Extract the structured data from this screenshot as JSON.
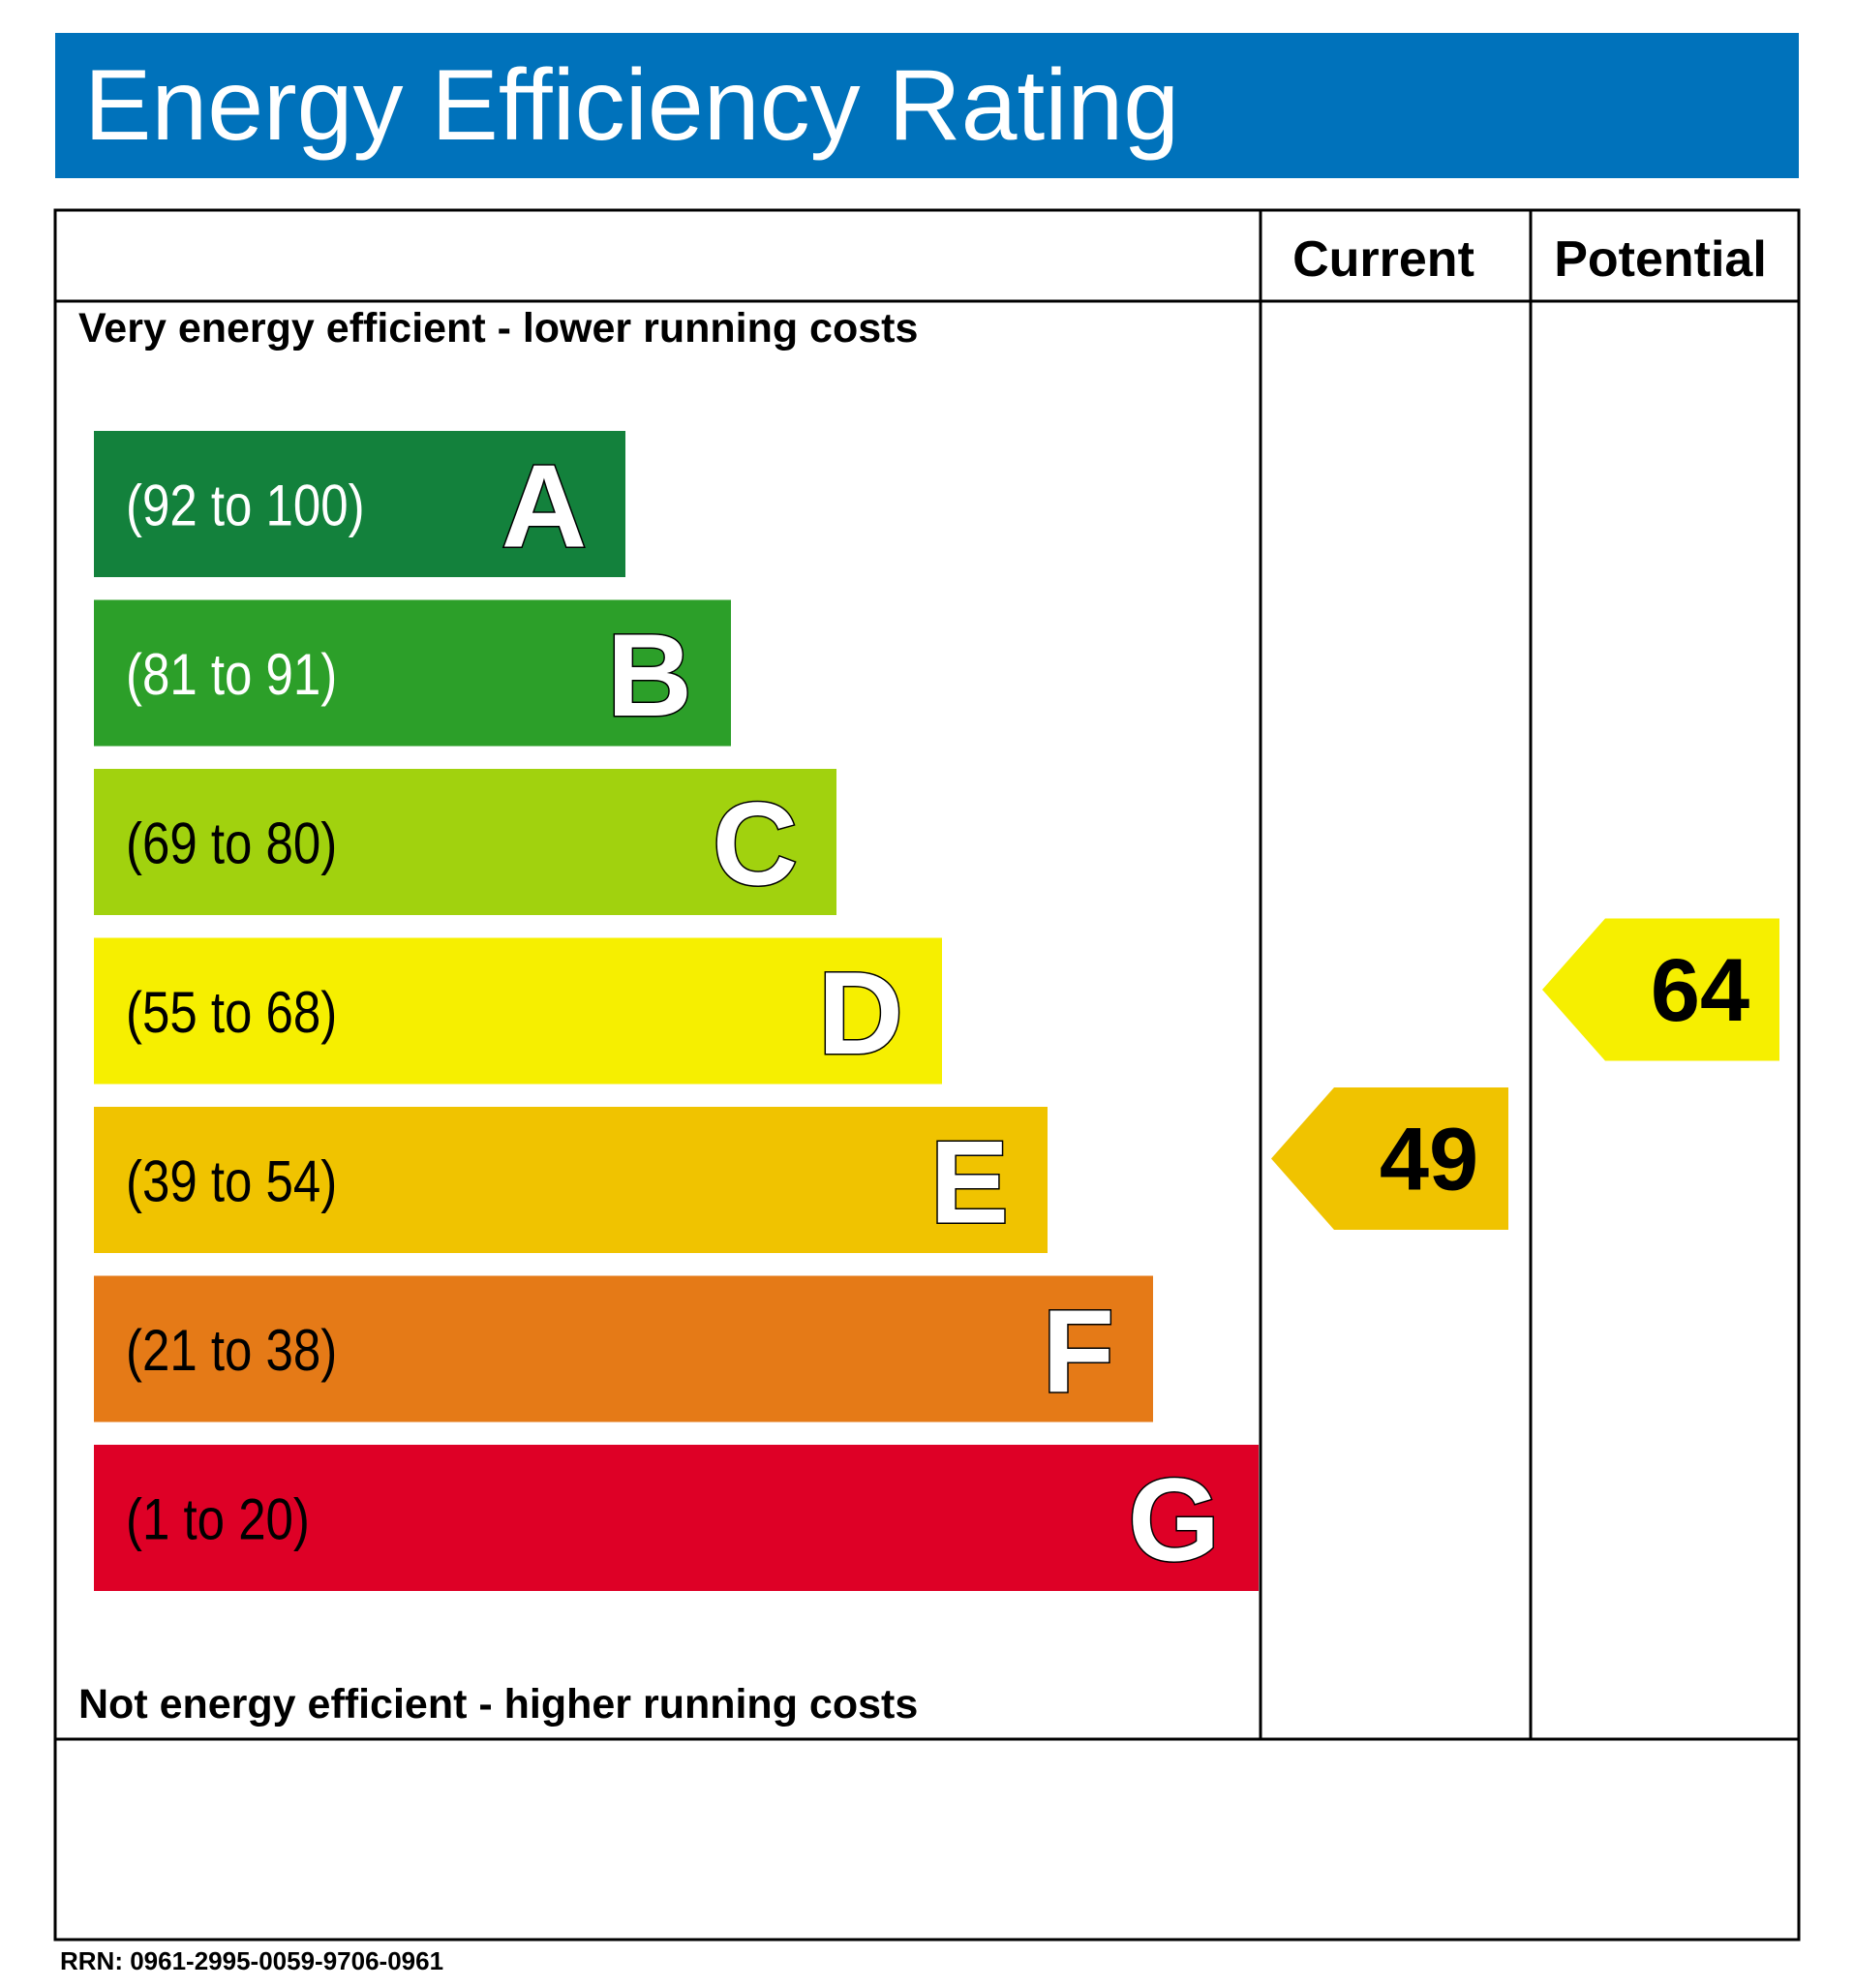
{
  "title": "Energy Efficiency Rating",
  "header": {
    "current_label": "Current",
    "potential_label": "Potential"
  },
  "top_note": "Very energy efficient - lower running costs",
  "bottom_note": "Not energy efficient - higher running costs",
  "rrn": "RRN: 0961-2995-0059-9706-0961",
  "chart_data": {
    "type": "bar",
    "bands": [
      {
        "letter": "A",
        "range": "(92 to 100)",
        "color": "#13813c",
        "text_color": "#ffffff"
      },
      {
        "letter": "B",
        "range": "(81 to 91)",
        "color": "#2c9f29",
        "text_color": "#ffffff"
      },
      {
        "letter": "C",
        "range": "(69 to 80)",
        "color": "#a1d20e",
        "text_color": "#000000"
      },
      {
        "letter": "D",
        "range": "(55 to 68)",
        "color": "#f6ef00",
        "text_color": "#000000"
      },
      {
        "letter": "E",
        "range": "(39 to 54)",
        "color": "#f0c300",
        "text_color": "#000000"
      },
      {
        "letter": "F",
        "range": "(21 to 38)",
        "color": "#e57a17",
        "text_color": "#000000"
      },
      {
        "letter": "G",
        "range": "(1 to 20)",
        "color": "#de0026",
        "text_color": "#000000"
      }
    ],
    "current": {
      "value": 49,
      "band": "E",
      "color": "#f0c300"
    },
    "potential": {
      "value": 64,
      "band": "D",
      "color": "#f6ef00"
    }
  }
}
